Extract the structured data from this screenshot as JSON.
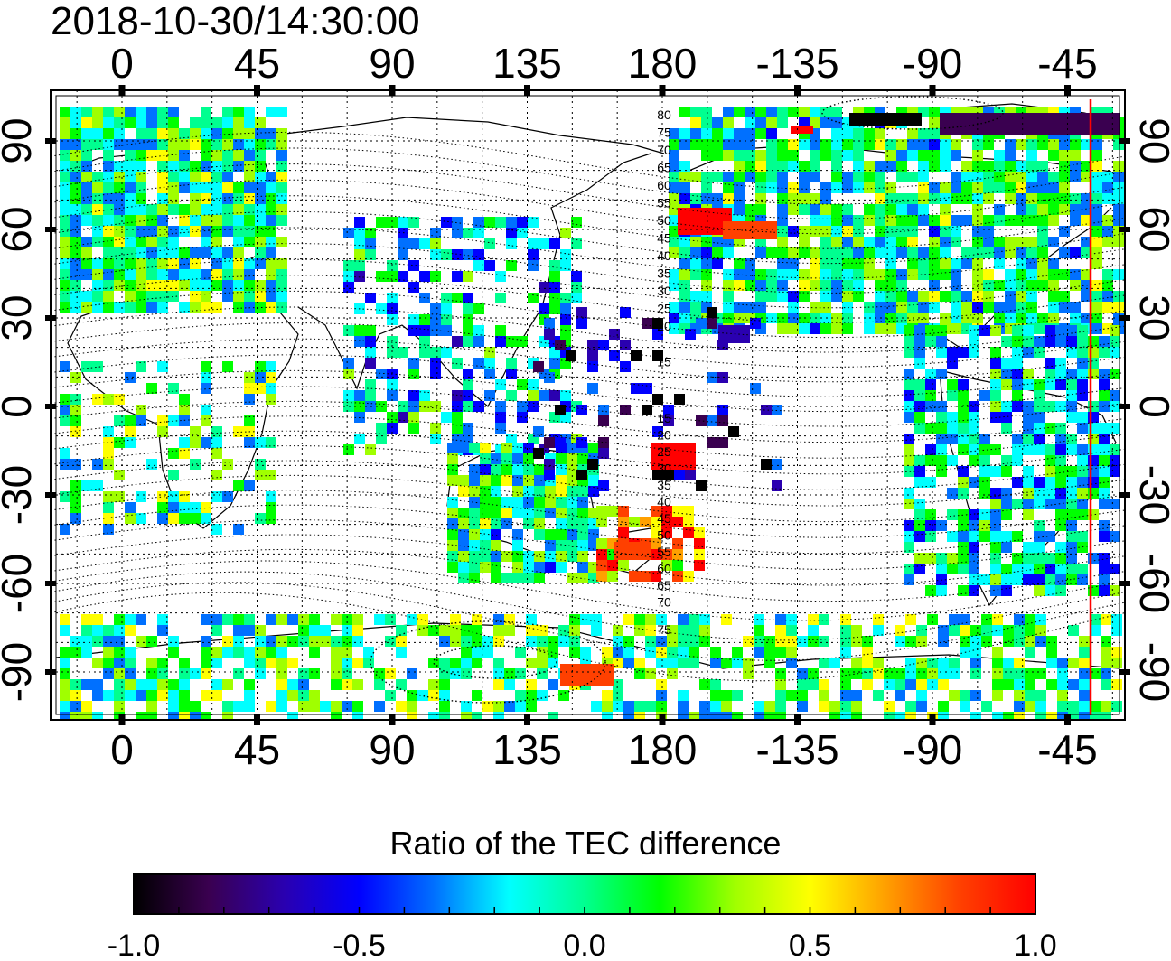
{
  "timestamp": "2018-10-30/14:30:00",
  "colorbar": {
    "title": "Ratio of the TEC difference",
    "ticks": [
      "-1.0",
      "-0.5",
      "0.0",
      "0.5",
      "1.0"
    ],
    "colors": [
      "#000000",
      "#3a0050",
      "#2a00b0",
      "#0000ff",
      "#0070ff",
      "#00ffff",
      "#00ff90",
      "#00ff00",
      "#a0ff00",
      "#ffff00",
      "#ffa000",
      "#ff4000",
      "#ff0000"
    ]
  },
  "axes": {
    "x_ticks": [
      "0",
      "45",
      "90",
      "135",
      "180",
      "-135",
      "-90",
      "-45"
    ],
    "y_ticks": [
      "90",
      "60",
      "30",
      "0",
      "-30",
      "-60",
      "-90"
    ]
  },
  "magnetic_lat_labels": {
    "north": [
      "80",
      "75",
      "70",
      "65",
      "60",
      "55",
      "50",
      "45",
      "40",
      "35",
      "30",
      "25",
      "20",
      "15"
    ],
    "south": [
      "15",
      "20",
      "25",
      "30",
      "35",
      "40",
      "45",
      "50",
      "55",
      "60",
      "65",
      "70",
      "75"
    ]
  },
  "markers": {
    "terminator_color": "#ff0000"
  }
}
